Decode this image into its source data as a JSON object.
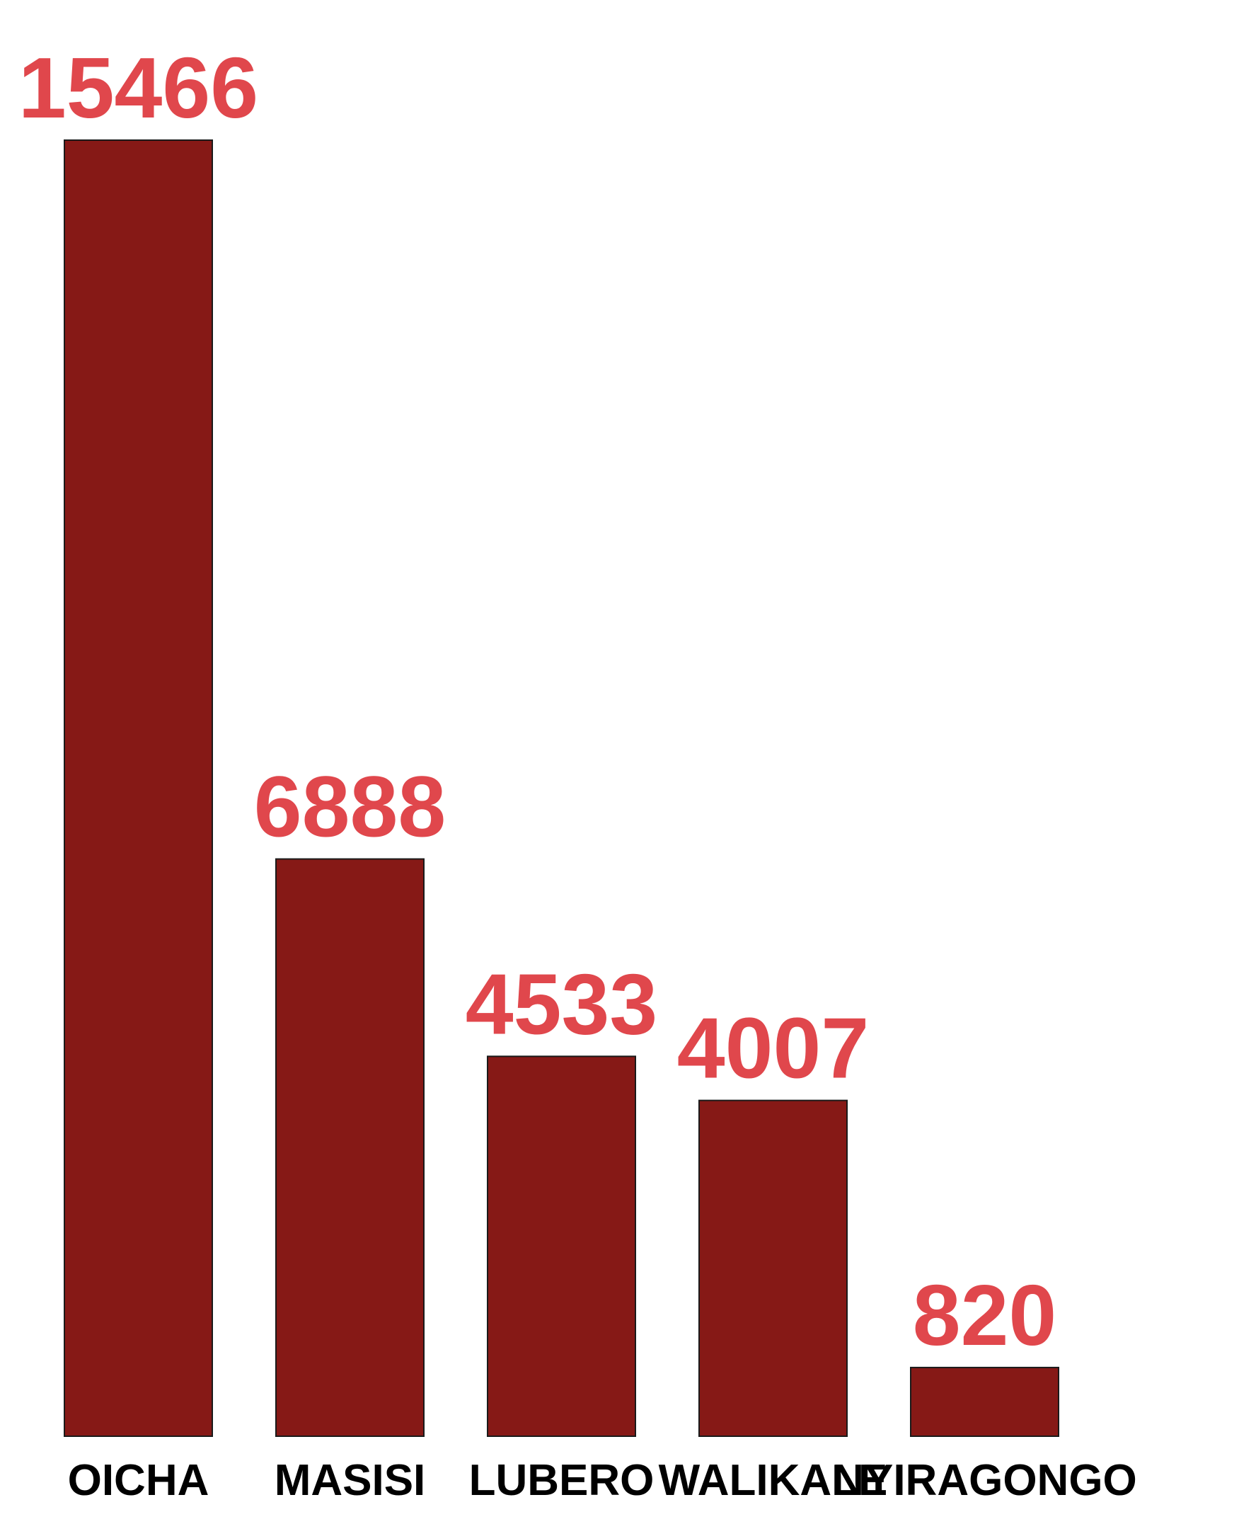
{
  "chart_data": {
    "type": "bar",
    "categories": [
      "OICHA",
      "MASISI",
      "LUBERO",
      "WALIKALE",
      "NYIRAGONGO"
    ],
    "values": [
      15466,
      6888,
      4533,
      4007,
      820
    ],
    "data_labels": [
      "15466",
      "6888",
      "4533",
      "4007",
      "820"
    ],
    "title": "",
    "xlabel": "",
    "ylabel": "",
    "ylim": [
      0,
      15466
    ],
    "grid": false,
    "legend": "none",
    "colors": {
      "bar_fill": "#861916",
      "bar_stroke": "#1a1a1a",
      "value_label": "#e0474c",
      "category_label": "#000000",
      "background": "#ffffff"
    }
  }
}
